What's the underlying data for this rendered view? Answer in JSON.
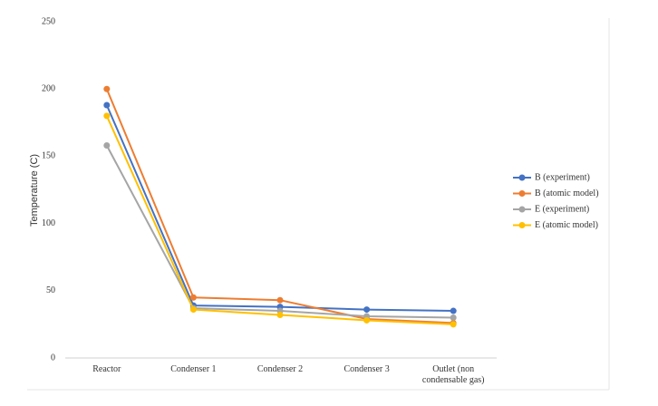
{
  "chart_data": {
    "type": "line",
    "y_label": "Temperature (C)",
    "categories": [
      "Reactor",
      "Condenser 1",
      "Condenser 2",
      "Condenser 3",
      "Outlet (non condensable gas)"
    ],
    "series": [
      {
        "name": "B (experiment)",
        "color": "#4472c4",
        "values": [
          188,
          39,
          38,
          36,
          35
        ]
      },
      {
        "name": "B (atomic model)",
        "color": "#ed7d31",
        "values": [
          200,
          45,
          43,
          29,
          26
        ]
      },
      {
        "name": "E (experiment)",
        "color": "#a5a5a5",
        "values": [
          158,
          37,
          35,
          31,
          30
        ]
      },
      {
        "name": "E (atomic model)",
        "color": "#ffc000",
        "values": [
          180,
          36,
          32,
          28,
          25
        ]
      }
    ],
    "ylim": [
      0,
      250
    ],
    "yticks": [
      0,
      50,
      100,
      150,
      200,
      250
    ],
    "grid": false,
    "legend": "right"
  }
}
